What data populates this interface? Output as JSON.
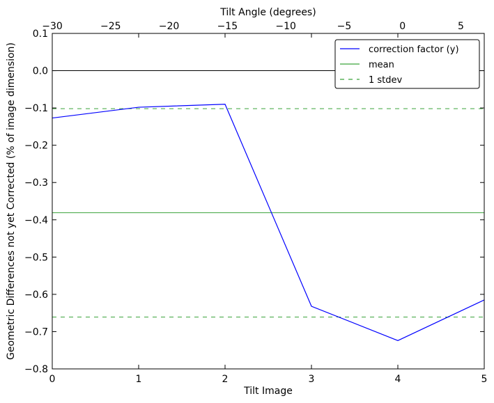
{
  "chart_data": {
    "type": "line",
    "xlabel": "Tilt Image",
    "x2label": "Tilt Angle (degrees)",
    "ylabel": "Geometric Differences not yet Corrected (% of image dimension)",
    "xlim": [
      0,
      5
    ],
    "x2lim": [
      -30,
      7
    ],
    "ylim": [
      -0.8,
      0.1
    ],
    "x_ticks": [
      0,
      1,
      2,
      3,
      4,
      5
    ],
    "x_tick_labels": [
      "0",
      "1",
      "2",
      "3",
      "4",
      "5"
    ],
    "x2_ticks": [
      -30,
      -25,
      -20,
      -15,
      -10,
      -5,
      0,
      5
    ],
    "x2_tick_labels": [
      "−30",
      "−25",
      "−20",
      "−15",
      "−10",
      "−5",
      "0",
      "5"
    ],
    "y_ticks": [
      0.1,
      0.0,
      -0.1,
      -0.2,
      -0.3,
      -0.4,
      -0.5,
      -0.6,
      -0.7,
      -0.8
    ],
    "y_tick_labels": [
      "0.1",
      "0.0",
      "−0.1",
      "−0.2",
      "−0.3",
      "−0.4",
      "−0.5",
      "−0.6",
      "−0.7",
      "−0.8"
    ],
    "grid": false,
    "legend_position": "top-right",
    "series": [
      {
        "name": "correction factor (y)",
        "color": "#0000ff",
        "style": "solid",
        "x": [
          0,
          1,
          2,
          3,
          4,
          5
        ],
        "y": [
          -0.127,
          -0.098,
          -0.09,
          -0.632,
          -0.724,
          -0.615
        ]
      }
    ],
    "reference_lines": [
      {
        "name": "mean",
        "y": -0.381,
        "color": "#3aa33a",
        "style": "solid",
        "in_legend": true
      },
      {
        "name": "1 stdev",
        "y": -0.102,
        "color": "#3aa33a",
        "style": "dashed",
        "in_legend": true
      },
      {
        "name": "1 stdev",
        "y": -0.661,
        "color": "#3aa33a",
        "style": "dashed",
        "in_legend": false
      },
      {
        "name": "",
        "y": 0.0,
        "color": "#000000",
        "style": "solid",
        "in_legend": false
      }
    ]
  }
}
